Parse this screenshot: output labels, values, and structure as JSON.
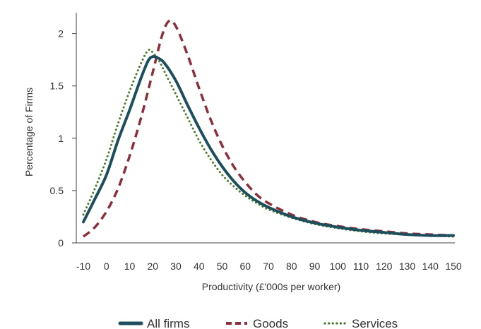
{
  "chart_data": {
    "type": "line",
    "title": "",
    "xlabel": "Productivity (£'000s per worker)",
    "ylabel": "Percentage of Firms",
    "xlim": [
      -10,
      150
    ],
    "ylim": [
      0,
      2.2
    ],
    "x_ticks": [
      -10,
      0,
      10,
      20,
      30,
      40,
      50,
      60,
      70,
      80,
      90,
      100,
      110,
      120,
      130,
      140,
      150
    ],
    "y_ticks": [
      0,
      0.5,
      1,
      1.5,
      2
    ],
    "y_tick_labels": [
      "0",
      "0.5",
      "1",
      "1.5",
      "2"
    ],
    "grid": false,
    "legend_position": "bottom",
    "series": [
      {
        "name": "All firms",
        "color": "#1c4e5c",
        "style": "solid",
        "points": [
          [
            -10,
            0.2
          ],
          [
            -5,
            0.42
          ],
          [
            0,
            0.65
          ],
          [
            5,
            0.98
          ],
          [
            10,
            1.27
          ],
          [
            15,
            1.58
          ],
          [
            18,
            1.74
          ],
          [
            20,
            1.78
          ],
          [
            22,
            1.77
          ],
          [
            25,
            1.72
          ],
          [
            30,
            1.55
          ],
          [
            35,
            1.32
          ],
          [
            40,
            1.1
          ],
          [
            45,
            0.9
          ],
          [
            50,
            0.73
          ],
          [
            55,
            0.59
          ],
          [
            60,
            0.48
          ],
          [
            65,
            0.4
          ],
          [
            70,
            0.34
          ],
          [
            80,
            0.25
          ],
          [
            90,
            0.19
          ],
          [
            100,
            0.15
          ],
          [
            110,
            0.12
          ],
          [
            120,
            0.1
          ],
          [
            130,
            0.08
          ],
          [
            140,
            0.07
          ],
          [
            150,
            0.07
          ]
        ]
      },
      {
        "name": "Goods",
        "color": "#8b2f3a",
        "style": "dashed",
        "points": [
          [
            -10,
            0.06
          ],
          [
            -5,
            0.15
          ],
          [
            0,
            0.3
          ],
          [
            5,
            0.52
          ],
          [
            10,
            0.83
          ],
          [
            15,
            1.2
          ],
          [
            20,
            1.63
          ],
          [
            24,
            1.98
          ],
          [
            27,
            2.12
          ],
          [
            30,
            2.07
          ],
          [
            35,
            1.8
          ],
          [
            40,
            1.48
          ],
          [
            45,
            1.18
          ],
          [
            50,
            0.93
          ],
          [
            55,
            0.73
          ],
          [
            60,
            0.58
          ],
          [
            65,
            0.46
          ],
          [
            70,
            0.38
          ],
          [
            80,
            0.27
          ],
          [
            90,
            0.2
          ],
          [
            100,
            0.16
          ],
          [
            110,
            0.13
          ],
          [
            120,
            0.11
          ],
          [
            130,
            0.09
          ],
          [
            140,
            0.08
          ],
          [
            150,
            0.07
          ]
        ]
      },
      {
        "name": "Services",
        "color": "#4a7a2c",
        "style": "dotted",
        "points": [
          [
            -10,
            0.27
          ],
          [
            -5,
            0.52
          ],
          [
            0,
            0.8
          ],
          [
            5,
            1.14
          ],
          [
            10,
            1.45
          ],
          [
            15,
            1.72
          ],
          [
            18,
            1.84
          ],
          [
            20,
            1.82
          ],
          [
            23,
            1.73
          ],
          [
            25,
            1.64
          ],
          [
            30,
            1.42
          ],
          [
            35,
            1.2
          ],
          [
            40,
            0.98
          ],
          [
            45,
            0.8
          ],
          [
            50,
            0.65
          ],
          [
            55,
            0.54
          ],
          [
            60,
            0.45
          ],
          [
            65,
            0.38
          ],
          [
            70,
            0.32
          ],
          [
            80,
            0.24
          ],
          [
            90,
            0.18
          ],
          [
            100,
            0.14
          ],
          [
            110,
            0.11
          ],
          [
            120,
            0.09
          ],
          [
            130,
            0.08
          ],
          [
            140,
            0.07
          ],
          [
            150,
            0.06
          ]
        ]
      }
    ]
  }
}
